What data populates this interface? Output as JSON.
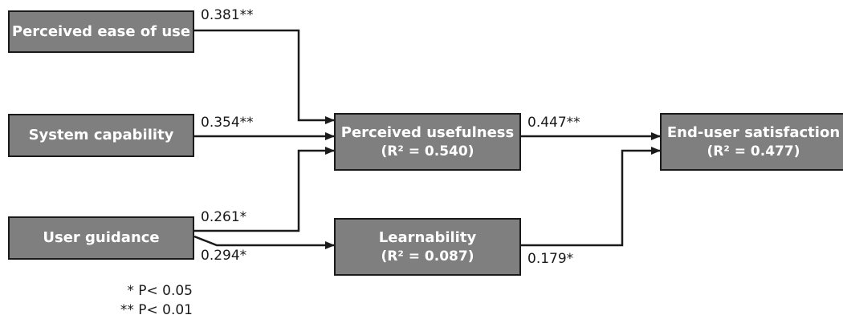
{
  "nodes": {
    "peou": {
      "title": "Perceived ease of use"
    },
    "sc": {
      "title": "System capability"
    },
    "ug": {
      "title": "User guidance"
    },
    "pu": {
      "title": "Perceived usefulness",
      "r2": "(R² = 0.540)"
    },
    "lr": {
      "title": "Learnability",
      "r2": "(R² = 0.087)"
    },
    "eus": {
      "title": "End-user satisfaction",
      "r2": "(R² = 0.477)"
    }
  },
  "paths": {
    "peou_pu": "0.381**",
    "sc_pu": "0.354**",
    "ug_pu": "0.261*",
    "ug_lr": "0.294*",
    "pu_eus": "0.447**",
    "lr_eus": "0.179*"
  },
  "notes": {
    "p05": "* P< 0.05",
    "p01": "** P< 0.01"
  },
  "colors": {
    "box_fill": "#7f7f7f",
    "box_border": "#1a1a1a",
    "arrow": "#1a1a1a"
  }
}
